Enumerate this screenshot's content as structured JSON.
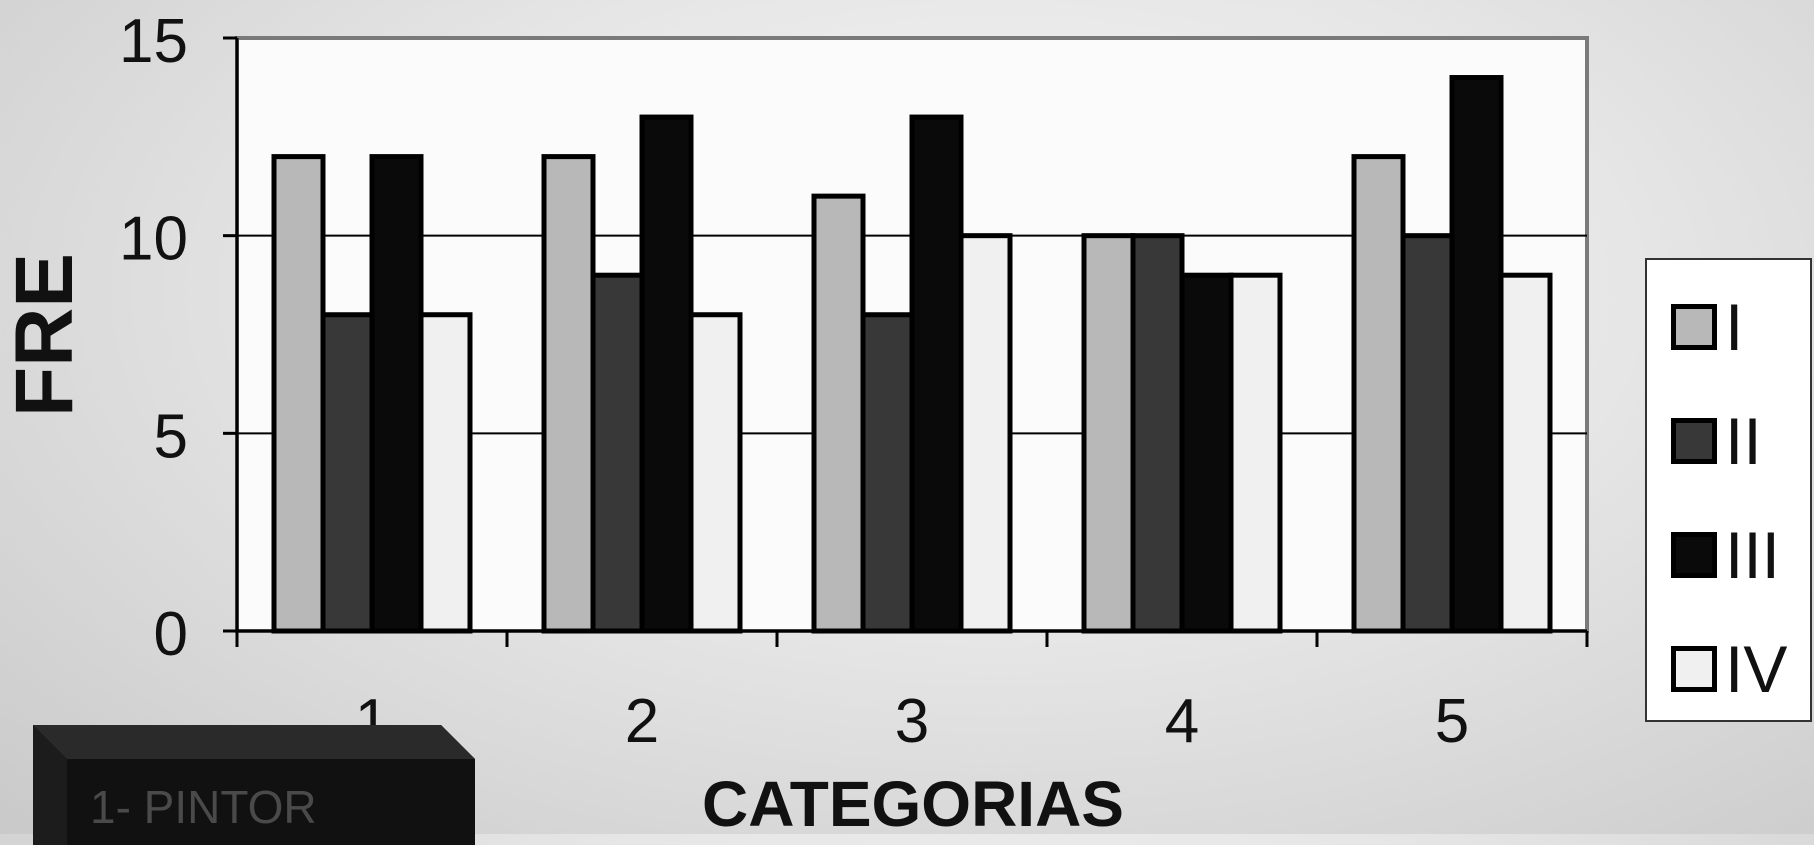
{
  "chart_data": {
    "type": "bar",
    "categories": [
      "1",
      "2",
      "3",
      "4",
      "5"
    ],
    "series": [
      {
        "name": "I",
        "values": [
          12,
          12,
          11,
          10,
          12
        ],
        "color": "#b8b8b8"
      },
      {
        "name": "II",
        "values": [
          8,
          9,
          8,
          10,
          10
        ],
        "color": "#383838"
      },
      {
        "name": "III",
        "values": [
          12,
          13,
          13,
          9,
          14
        ],
        "color": "#0a0a0a"
      },
      {
        "name": "IV",
        "values": [
          8,
          8,
          10,
          9,
          9
        ],
        "color": "#f0f0f0"
      }
    ],
    "xlabel": "CATEGORIAS",
    "ylabel": "FRE",
    "ylim": [
      0,
      15
    ],
    "yticks": [
      0,
      5,
      10,
      15
    ],
    "grid": true,
    "legend_position": "right"
  },
  "note": {
    "text": "1- PINTOR"
  }
}
